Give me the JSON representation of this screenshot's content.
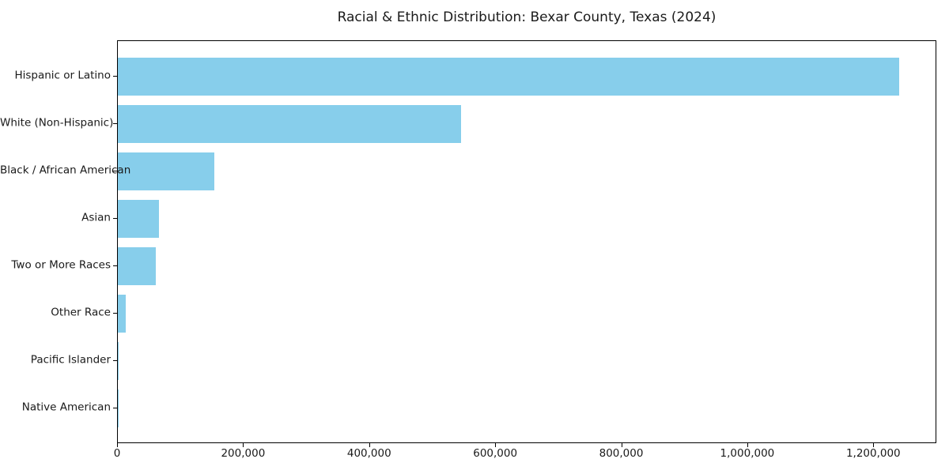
{
  "figure": {
    "background": "#ffffff"
  },
  "chart_data": {
    "type": "bar",
    "orientation": "horizontal",
    "title": "Racial & Ethnic Distribution: Bexar County, Texas (2024)",
    "categories": [
      "Hispanic or Latino",
      "White (Non-Hispanic)",
      "Black / African American",
      "Asian",
      "Two or More Races",
      "Other Race",
      "Pacific Islander",
      "Native American"
    ],
    "values": [
      1240000,
      545000,
      153000,
      65000,
      60000,
      12000,
      1200,
      800
    ],
    "xlabel": "",
    "ylabel": "",
    "xlim": [
      0,
      1300000
    ],
    "x_ticks": [
      0,
      200000,
      400000,
      600000,
      800000,
      1000000,
      1200000
    ],
    "x_tick_labels": [
      "0",
      "200,000",
      "400,000",
      "600,000",
      "800,000",
      "1,000,000",
      "1,200,000"
    ],
    "bar_color": "#87CEEB",
    "axis_color": "#000000",
    "text_color": "#1a1a1a",
    "plot_background": "#ffffff",
    "grid": false,
    "legend": null
  }
}
